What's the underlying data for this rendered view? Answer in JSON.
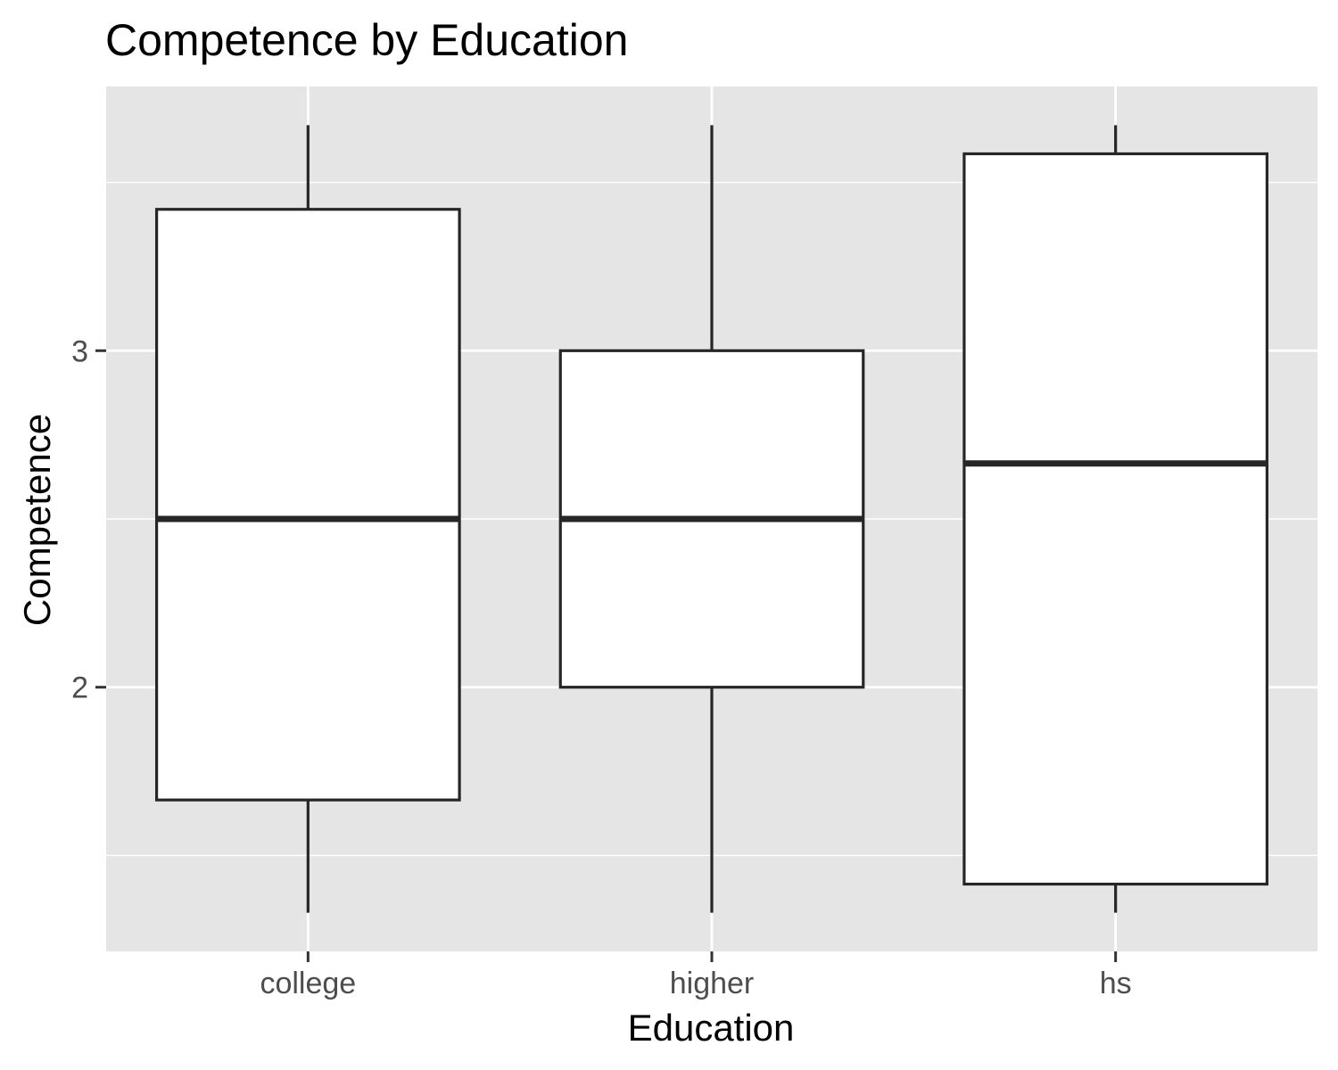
{
  "chart_data": {
    "type": "boxplot",
    "title": "Competence by Education",
    "xlabel": "Education",
    "ylabel": "Competence",
    "categories": [
      "college",
      "higher",
      "hs"
    ],
    "boxes": [
      {
        "category": "college",
        "whisker_low": 1.33,
        "q1": 1.665,
        "median": 2.5,
        "q3": 3.42,
        "whisker_high": 3.67
      },
      {
        "category": "higher",
        "whisker_low": 1.33,
        "q1": 2.0,
        "median": 2.5,
        "q3": 3.0,
        "whisker_high": 3.67
      },
      {
        "category": "hs",
        "whisker_low": 1.33,
        "q1": 1.415,
        "median": 2.665,
        "q3": 3.585,
        "whisker_high": 3.67
      }
    ],
    "yticks": [
      2,
      3
    ],
    "ytick_labels": [
      "2",
      "3"
    ],
    "ylim": [
      1.215,
      3.785
    ],
    "grid": true,
    "legend": "none",
    "colors": {
      "panel": "#e5e5e5",
      "grid": "#ffffff",
      "box_fill": "#ffffff",
      "box_stroke": "#262626",
      "tick_text": "#4d4d4d",
      "text": "#000000"
    }
  }
}
